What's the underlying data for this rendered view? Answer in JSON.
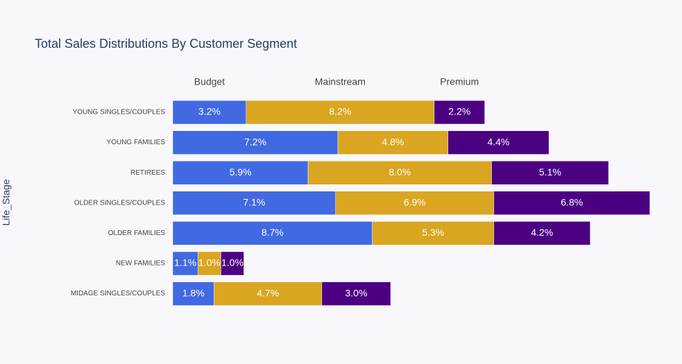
{
  "chart_data": {
    "type": "bar",
    "orientation": "horizontal",
    "barmode": "stack",
    "title": "Total Sales Distributions By Customer Segment",
    "y_label": "Life_Stage",
    "categories": [
      "YOUNG SINGLES/COUPLES",
      "YOUNG FAMILIES",
      "RETIREES",
      "OLDER SINGLES/COUPLES",
      "OLDER FAMILIES",
      "NEW FAMILIES",
      "MIDAGE SINGLES/COUPLES"
    ],
    "series": [
      {
        "name": "Budget",
        "color": "#4169e1",
        "values": [
          3.2,
          7.2,
          5.9,
          7.1,
          8.7,
          1.1,
          1.8
        ],
        "value_labels": [
          "3.2%",
          "7.2%",
          "5.9%",
          "7.1%",
          "8.7%",
          "1.1%",
          "1.8%"
        ]
      },
      {
        "name": "Mainstream",
        "color": "#daa520",
        "values": [
          8.2,
          4.8,
          8.0,
          6.9,
          5.3,
          1.0,
          4.7
        ],
        "value_labels": [
          "8.2%",
          "4.8%",
          "8.0%",
          "6.9%",
          "5.3%",
          "1.0%",
          "4.7%"
        ]
      },
      {
        "name": "Premium",
        "color": "#4b0082",
        "values": [
          2.2,
          4.4,
          5.1,
          6.8,
          4.2,
          1.0,
          3.0
        ],
        "value_labels": [
          "2.2%",
          "4.4%",
          "5.1%",
          "6.8%",
          "4.2%",
          "1.0%",
          "3.0%"
        ]
      }
    ],
    "xlim": [
      0,
      21.9
    ]
  }
}
